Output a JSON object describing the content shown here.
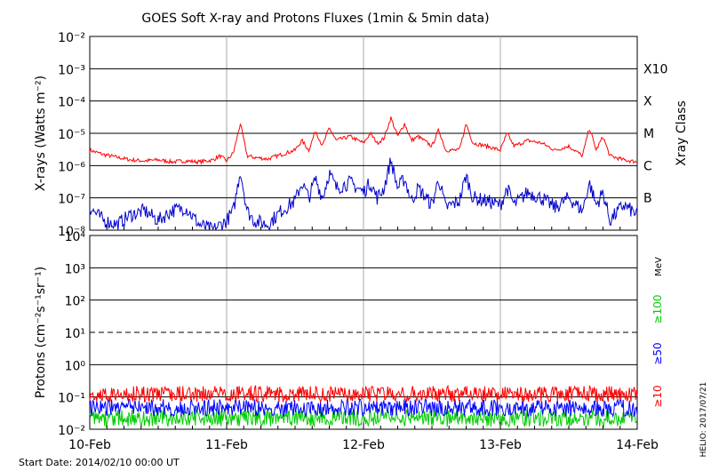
{
  "title": "GOES Soft X-ray and Protons Fluxes   (1min & 5min data)",
  "footer": {
    "start_date": "Start Date: 2014/02/10 00:00 UT",
    "credit": "HELIO: 2017/07/21"
  },
  "colors": {
    "xray_long": "#ff0000",
    "xray_short": "#0000cc",
    "p10": "#ff0000",
    "p50": "#0000ff",
    "p100": "#00cc00",
    "grid_day": "#aaaaaa",
    "axis": "#000000"
  },
  "chart_data": [
    {
      "type": "line",
      "panel": "xray",
      "ylabel": "X-rays (Watts m⁻²)",
      "yscale": "log",
      "ylim": [
        1e-08,
        0.01
      ],
      "ytick_labels": [
        "10⁻⁸",
        "10⁻⁷",
        "10⁻⁶",
        "10⁻⁵",
        "10⁻⁴",
        "10⁻³",
        "10⁻²"
      ],
      "right_axis_title": "Xray Class",
      "class_labels": [
        {
          "label": "B",
          "value": 1e-07
        },
        {
          "label": "C",
          "value": 1e-06
        },
        {
          "label": "M",
          "value": 1e-05
        },
        {
          "label": "X",
          "value": 0.0001
        },
        {
          "label": "X10",
          "value": 0.001
        }
      ],
      "grid": "horizontal at decades 1e-7..1e-3, vertical at day boundaries",
      "series": [
        {
          "color": "#ff0000",
          "x_days": [
            0,
            0.1,
            0.2,
            0.3,
            0.4,
            0.5,
            0.6,
            0.7,
            0.8,
            0.9,
            0.95,
            1.0,
            1.05,
            1.1,
            1.15,
            1.2,
            1.3,
            1.4,
            1.5,
            1.55,
            1.6,
            1.65,
            1.7,
            1.75,
            1.8,
            1.9,
            2.0,
            2.05,
            2.1,
            2.15,
            2.2,
            2.25,
            2.3,
            2.35,
            2.4,
            2.5,
            2.55,
            2.6,
            2.7,
            2.75,
            2.8,
            2.9,
            3.0,
            3.05,
            3.1,
            3.2,
            3.3,
            3.4,
            3.5,
            3.6,
            3.65,
            3.7,
            3.75,
            3.8,
            3.9,
            4.0
          ],
          "y": [
            3e-06,
            2.2e-06,
            1.8e-06,
            1.5e-06,
            1.4e-06,
            1.5e-06,
            1.3e-06,
            1.4e-06,
            1.3e-06,
            1.5e-06,
            2e-06,
            1.4e-06,
            2.5e-06,
            2e-05,
            2e-06,
            1.8e-06,
            1.6e-06,
            2.2e-06,
            3e-06,
            6e-06,
            3e-06,
            1.2e-05,
            4e-06,
            1.5e-05,
            6e-06,
            8e-06,
            5e-06,
            1e-05,
            5e-06,
            7e-06,
            3e-05,
            8e-06,
            2e-05,
            6e-06,
            8e-06,
            4e-06,
            1.3e-05,
            3e-06,
            3e-06,
            2e-05,
            5e-06,
            4e-06,
            3e-06,
            1e-05,
            4e-06,
            6e-06,
            5e-06,
            3e-06,
            4e-06,
            2e-06,
            1.5e-05,
            3e-06,
            8e-06,
            2e-06,
            1.5e-06,
            1.3e-06
          ]
        },
        {
          "color": "#0000cc",
          "x_days": [
            0,
            0.1,
            0.2,
            0.3,
            0.4,
            0.5,
            0.6,
            0.7,
            0.8,
            0.9,
            1.0,
            1.05,
            1.1,
            1.15,
            1.2,
            1.3,
            1.4,
            1.5,
            1.55,
            1.6,
            1.65,
            1.7,
            1.75,
            1.8,
            1.9,
            2.0,
            2.05,
            2.1,
            2.15,
            2.2,
            2.25,
            2.3,
            2.35,
            2.4,
            2.5,
            2.55,
            2.6,
            2.7,
            2.75,
            2.8,
            2.9,
            3.0,
            3.05,
            3.1,
            3.2,
            3.3,
            3.4,
            3.5,
            3.6,
            3.65,
            3.7,
            3.75,
            3.8,
            3.9,
            4.0
          ],
          "y": [
            5e-08,
            2e-08,
            1.5e-08,
            3e-08,
            4e-08,
            2e-08,
            4e-08,
            5e-08,
            1.5e-08,
            1e-08,
            2e-08,
            4e-08,
            7e-07,
            4e-08,
            2e-08,
            1.5e-08,
            4e-08,
            8e-08,
            3e-07,
            1e-07,
            4e-07,
            1e-07,
            6e-07,
            2e-07,
            3e-07,
            1.5e-07,
            3e-07,
            1e-07,
            2e-07,
            1.5e-06,
            2e-07,
            4e-07,
            8e-08,
            2e-07,
            6e-08,
            4e-07,
            5e-08,
            8e-08,
            5e-07,
            1e-07,
            8e-08,
            6e-08,
            2e-07,
            6e-08,
            1.5e-07,
            1e-07,
            5e-08,
            1e-07,
            4e-08,
            3e-07,
            6e-08,
            1.5e-07,
            2e-08,
            6e-08,
            3e-08
          ]
        }
      ]
    },
    {
      "type": "line",
      "panel": "protons",
      "ylabel": "Protons (cm⁻²s⁻¹sr⁻¹)",
      "yscale": "log",
      "ylim": [
        0.01,
        10000
      ],
      "ytick_labels": [
        "10⁻²",
        "10⁻¹",
        "10⁰",
        "10¹",
        "10²",
        "10³",
        "10⁴"
      ],
      "unit_label": "MeV",
      "threshold_line": {
        "value": 10,
        "style": "dashed"
      },
      "series": [
        {
          "name": "≥10",
          "color": "#ff0000",
          "level": 0.12,
          "noise_low": 0.07,
          "noise_high": 0.22
        },
        {
          "name": "≥50",
          "color": "#0000ff",
          "level": 0.045,
          "noise_low": 0.025,
          "noise_high": 0.085
        },
        {
          "name": "≥100",
          "color": "#00cc00",
          "level": 0.022,
          "noise_low": 0.012,
          "noise_high": 0.04
        }
      ]
    }
  ],
  "x_axis": {
    "type": "date",
    "range": [
      "2014-02-10",
      "2014-02-14"
    ],
    "tick_labels": [
      "10-Feb",
      "11-Feb",
      "12-Feb",
      "13-Feb",
      "14-Feb"
    ]
  }
}
